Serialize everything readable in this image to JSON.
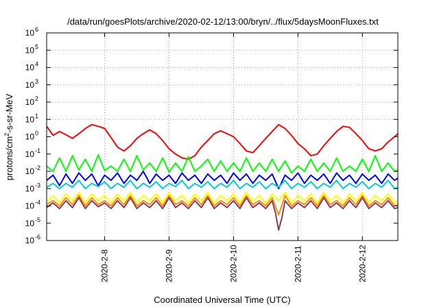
{
  "chart_data": {
    "type": "line",
    "title": "/data/run/goesPlots/archive/2020-02-12/13:00/bryn/../flux/5daysMoonFluxes.txt",
    "xlabel": "Coordinated Universal Time (UTC)",
    "ylabel": "protons/cm²-s-sr-MeV",
    "ylabel_parts": {
      "base": "protons/cm",
      "sup": "2",
      "tail": "-s-sr-MeV"
    },
    "yscale": "log",
    "ylim": [
      1e-06,
      1000000.0
    ],
    "xlim": [
      7.1,
      12.55
    ],
    "grid": true,
    "x_ticks": [
      {
        "value": 8,
        "label": "2020-2-8"
      },
      {
        "value": 9,
        "label": "2020-2-9"
      },
      {
        "value": 10,
        "label": "2020-2-10"
      },
      {
        "value": 11,
        "label": "2020-2-11"
      },
      {
        "value": 12,
        "label": "2020-2-12"
      }
    ],
    "y_ticks": [
      {
        "exp": -6,
        "label": "10",
        "sup": "-6"
      },
      {
        "exp": -5,
        "label": "10",
        "sup": "-5"
      },
      {
        "exp": -4,
        "label": "10",
        "sup": "-4"
      },
      {
        "exp": -3,
        "label": "10",
        "sup": "-3"
      },
      {
        "exp": -2,
        "label": "10",
        "sup": "-2"
      },
      {
        "exp": -1,
        "label": "10",
        "sup": "-1"
      },
      {
        "exp": 0,
        "label": "10",
        "sup": "0"
      },
      {
        "exp": 1,
        "label": "10",
        "sup": "1"
      },
      {
        "exp": 2,
        "label": "10",
        "sup": "2"
      },
      {
        "exp": 3,
        "label": "10",
        "sup": "3"
      },
      {
        "exp": 4,
        "label": "10",
        "sup": "4"
      },
      {
        "exp": 5,
        "label": "10",
        "sup": "5"
      },
      {
        "exp": 6,
        "label": "10",
        "sup": "6"
      }
    ],
    "series": [
      {
        "color": "#ff0000",
        "width": 2,
        "x": [
          7.1,
          7.2,
          7.3,
          7.4,
          7.5,
          7.6,
          7.7,
          7.8,
          7.9,
          8.0,
          8.1,
          8.2,
          8.3,
          8.4,
          8.5,
          8.6,
          8.7,
          8.8,
          8.9,
          9.0,
          9.1,
          9.2,
          9.3,
          9.4,
          9.5,
          9.6,
          9.7,
          9.8,
          9.9,
          10.0,
          10.1,
          10.2,
          10.3,
          10.4,
          10.5,
          10.6,
          10.7,
          10.8,
          10.9,
          11.0,
          11.1,
          11.2,
          11.3,
          11.4,
          11.5,
          11.6,
          11.7,
          11.8,
          11.9,
          12.0,
          12.1,
          12.2,
          12.3,
          12.4,
          12.5,
          12.55
        ],
        "y": [
          4.0,
          1.2,
          2.0,
          1.3,
          0.8,
          1.5,
          3.0,
          5.0,
          4.0,
          3.0,
          0.9,
          0.25,
          0.15,
          0.3,
          0.8,
          1.5,
          2.5,
          1.5,
          0.6,
          0.2,
          0.1,
          0.06,
          0.05,
          0.08,
          0.25,
          0.6,
          1.5,
          2.2,
          1.5,
          1.0,
          0.4,
          0.15,
          0.12,
          0.3,
          0.8,
          2.0,
          5.0,
          3.0,
          1.2,
          0.4,
          0.2,
          0.08,
          0.1,
          0.3,
          0.8,
          2.0,
          4.0,
          3.5,
          1.5,
          0.6,
          0.2,
          0.15,
          0.2,
          0.5,
          1.0,
          1.5
        ]
      },
      {
        "color": "#00ff00",
        "width": 2,
        "x": [
          7.1,
          7.2,
          7.3,
          7.4,
          7.5,
          7.6,
          7.7,
          7.8,
          7.9,
          8.0,
          8.1,
          8.2,
          8.3,
          8.4,
          8.5,
          8.6,
          8.7,
          8.8,
          8.9,
          9.0,
          9.1,
          9.2,
          9.3,
          9.4,
          9.5,
          9.6,
          9.7,
          9.8,
          9.9,
          10.0,
          10.1,
          10.2,
          10.3,
          10.4,
          10.5,
          10.6,
          10.7,
          10.8,
          10.9,
          11.0,
          11.1,
          11.2,
          11.3,
          11.4,
          11.5,
          11.6,
          11.7,
          11.8,
          11.9,
          12.0,
          12.1,
          12.2,
          12.3,
          12.4,
          12.5,
          12.55
        ],
        "y": [
          0.02,
          0.01,
          0.06,
          0.01,
          0.08,
          0.012,
          0.05,
          0.01,
          0.09,
          0.011,
          0.02,
          0.01,
          0.05,
          0.01,
          0.08,
          0.012,
          0.03,
          0.01,
          0.06,
          0.009,
          0.03,
          0.01,
          0.07,
          0.01,
          0.02,
          0.05,
          0.01,
          0.04,
          0.01,
          0.03,
          0.01,
          0.06,
          0.01,
          0.03,
          0.01,
          0.05,
          0.01,
          0.04,
          0.008,
          0.02,
          0.01,
          0.05,
          0.01,
          0.03,
          0.01,
          0.06,
          0.01,
          0.02,
          0.01,
          0.05,
          0.01,
          0.08,
          0.01,
          0.03,
          0.01,
          0.012
        ]
      },
      {
        "color": "#0000ff",
        "width": 2,
        "x": [
          7.1,
          7.2,
          7.3,
          7.4,
          7.5,
          7.6,
          7.7,
          7.8,
          7.9,
          8.0,
          8.1,
          8.2,
          8.3,
          8.4,
          8.5,
          8.6,
          8.7,
          8.8,
          8.9,
          9.0,
          9.1,
          9.2,
          9.3,
          9.4,
          9.5,
          9.6,
          9.7,
          9.8,
          9.9,
          10.0,
          10.1,
          10.2,
          10.3,
          10.4,
          10.5,
          10.6,
          10.7,
          10.8,
          10.9,
          11.0,
          11.1,
          11.2,
          11.3,
          11.4,
          11.5,
          11.6,
          11.7,
          11.8,
          11.9,
          12.0,
          12.1,
          12.2,
          12.3,
          12.4,
          12.5,
          12.55
        ],
        "y": [
          0.003,
          0.006,
          0.0015,
          0.007,
          0.002,
          0.008,
          0.003,
          0.007,
          0.0015,
          0.006,
          0.003,
          0.008,
          0.002,
          0.006,
          0.003,
          0.01,
          0.002,
          0.007,
          0.003,
          0.006,
          0.002,
          0.008,
          0.003,
          0.006,
          0.002,
          0.007,
          0.003,
          0.006,
          0.002,
          0.008,
          0.003,
          0.007,
          0.002,
          0.006,
          0.003,
          0.007,
          0.001,
          0.006,
          0.003,
          0.008,
          0.002,
          0.006,
          0.003,
          0.007,
          0.002,
          0.008,
          0.003,
          0.006,
          0.002,
          0.007,
          0.003,
          0.006,
          0.002,
          0.007,
          0.003,
          0.004
        ]
      },
      {
        "color": "#00ced1",
        "width": 2,
        "x": [
          7.1,
          7.2,
          7.3,
          7.4,
          7.5,
          7.6,
          7.7,
          7.8,
          7.9,
          8.0,
          8.1,
          8.2,
          8.3,
          8.4,
          8.5,
          8.6,
          8.7,
          8.8,
          8.9,
          9.0,
          9.1,
          9.2,
          9.3,
          9.4,
          9.5,
          9.6,
          9.7,
          9.8,
          9.9,
          10.0,
          10.1,
          10.2,
          10.3,
          10.4,
          10.5,
          10.6,
          10.7,
          10.8,
          10.9,
          11.0,
          11.1,
          11.2,
          11.3,
          11.4,
          11.5,
          11.6,
          11.7,
          11.8,
          11.9,
          12.0,
          12.1,
          12.2,
          12.3,
          12.4,
          12.5,
          12.55
        ],
        "y": [
          0.0012,
          0.002,
          0.001,
          0.002,
          0.0012,
          0.003,
          0.001,
          0.002,
          0.0013,
          0.0025,
          0.001,
          0.002,
          0.0012,
          0.003,
          0.001,
          0.002,
          0.0012,
          0.0025,
          0.001,
          0.002,
          0.0013,
          0.003,
          0.001,
          0.002,
          0.0012,
          0.0025,
          0.001,
          0.002,
          0.0012,
          0.003,
          0.001,
          0.002,
          0.0012,
          0.0025,
          0.001,
          0.002,
          0.0012,
          0.003,
          0.001,
          0.002,
          0.0012,
          0.0025,
          0.001,
          0.002,
          0.0012,
          0.003,
          0.001,
          0.002,
          0.0012,
          0.0025,
          0.001,
          0.002,
          0.0012,
          0.003,
          0.001,
          0.0012
        ]
      },
      {
        "color": "#ffff00",
        "width": 2,
        "x": [
          7.1,
          7.2,
          7.3,
          7.4,
          7.5,
          7.6,
          7.7,
          7.8,
          7.9,
          8.0,
          8.1,
          8.2,
          8.3,
          8.4,
          8.5,
          8.6,
          8.7,
          8.8,
          8.9,
          9.0,
          9.1,
          9.2,
          9.3,
          9.4,
          9.5,
          9.6,
          9.7,
          9.8,
          9.9,
          10.0,
          10.1,
          10.2,
          10.3,
          10.4,
          10.5,
          10.6,
          10.7,
          10.8,
          10.9,
          11.0,
          11.1,
          11.2,
          11.3,
          11.4,
          11.5,
          11.6,
          11.7,
          11.8,
          11.9,
          12.0,
          12.1,
          12.2,
          12.3,
          12.4,
          12.5,
          12.55
        ],
        "y": [
          0.00018,
          0.0004,
          0.00015,
          0.0005,
          0.0002,
          0.0006,
          0.00015,
          0.0005,
          0.0002,
          0.0004,
          0.00015,
          0.0005,
          0.0002,
          0.0006,
          0.00015,
          0.0004,
          0.0002,
          0.0005,
          0.00015,
          0.0006,
          0.0002,
          0.0004,
          0.00015,
          0.0005,
          0.0002,
          0.0006,
          0.00015,
          0.0004,
          0.0002,
          0.0005,
          0.00015,
          0.0006,
          0.0002,
          0.0004,
          0.00015,
          0.0005,
          0.0002,
          0.0006,
          0.00015,
          0.0004,
          0.0002,
          0.0005,
          0.00015,
          0.0006,
          0.0002,
          0.0004,
          0.00015,
          0.0005,
          0.0002,
          0.0006,
          0.00015,
          0.0004,
          0.0002,
          0.0005,
          0.00015,
          0.0002
        ]
      },
      {
        "color": "#ff8c00",
        "width": 2,
        "x": [
          7.1,
          7.2,
          7.3,
          7.4,
          7.5,
          7.6,
          7.7,
          7.8,
          7.9,
          8.0,
          8.1,
          8.2,
          8.3,
          8.4,
          8.5,
          8.6,
          8.7,
          8.8,
          8.9,
          9.0,
          9.1,
          9.2,
          9.3,
          9.4,
          9.5,
          9.6,
          9.7,
          9.8,
          9.9,
          10.0,
          10.1,
          10.2,
          10.3,
          10.4,
          10.5,
          10.6,
          10.7,
          10.8,
          10.9,
          11.0,
          11.1,
          11.2,
          11.3,
          11.4,
          11.5,
          11.6,
          11.7,
          11.8,
          11.9,
          12.0,
          12.1,
          12.2,
          12.3,
          12.4,
          12.5,
          12.55
        ],
        "y": [
          0.00012,
          0.0002,
          0.0001,
          0.0003,
          0.00012,
          0.0004,
          0.0001,
          0.0003,
          0.00012,
          0.0002,
          0.0001,
          0.0003,
          0.00012,
          0.0004,
          0.0001,
          0.0002,
          0.00012,
          0.0003,
          0.0001,
          0.0004,
          0.00012,
          0.0002,
          0.0001,
          0.0003,
          0.00012,
          0.0004,
          0.0001,
          0.0002,
          0.00012,
          0.0003,
          0.0001,
          0.0004,
          0.00012,
          0.0002,
          0.0001,
          0.0003,
          3e-05,
          0.0004,
          0.0001,
          0.0002,
          0.00012,
          0.0003,
          0.0001,
          0.0004,
          0.00012,
          0.0002,
          0.0001,
          0.0003,
          0.00012,
          0.0004,
          0.0001,
          0.0002,
          0.00012,
          0.0003,
          0.0001,
          0.00012
        ]
      },
      {
        "color": "#8b3a62",
        "width": 2,
        "x": [
          7.1,
          7.2,
          7.3,
          7.4,
          7.5,
          7.6,
          7.7,
          7.8,
          7.9,
          8.0,
          8.1,
          8.2,
          8.3,
          8.4,
          8.5,
          8.6,
          8.7,
          8.8,
          8.9,
          9.0,
          9.1,
          9.2,
          9.3,
          9.4,
          9.5,
          9.6,
          9.7,
          9.8,
          9.9,
          10.0,
          10.1,
          10.2,
          10.3,
          10.4,
          10.5,
          10.6,
          10.65,
          10.7,
          10.75,
          10.8,
          10.9,
          11.0,
          11.1,
          11.2,
          11.3,
          11.4,
          11.5,
          11.6,
          11.7,
          11.8,
          11.9,
          12.0,
          12.1,
          12.2,
          12.3,
          12.4,
          12.5,
          12.55
        ],
        "y": [
          8e-05,
          0.00015,
          7e-05,
          0.0002,
          8e-05,
          0.0003,
          7e-05,
          0.0002,
          9e-05,
          0.00015,
          7e-05,
          0.0002,
          8e-05,
          0.0003,
          7e-05,
          0.00015,
          8e-05,
          0.0002,
          7e-05,
          0.0003,
          8e-05,
          0.00015,
          7e-05,
          0.0002,
          8e-05,
          0.0003,
          7e-05,
          0.00015,
          8e-05,
          0.0002,
          7e-05,
          0.0003,
          8e-05,
          0.00015,
          7e-05,
          0.0002,
          4e-05,
          4e-06,
          2e-05,
          0.0002,
          7e-05,
          0.00015,
          8e-05,
          0.0002,
          7e-05,
          0.0003,
          8e-05,
          0.00015,
          7e-05,
          0.0002,
          8e-05,
          0.0003,
          7e-05,
          0.00015,
          8e-05,
          0.0002,
          7e-05,
          8e-05
        ]
      }
    ]
  }
}
